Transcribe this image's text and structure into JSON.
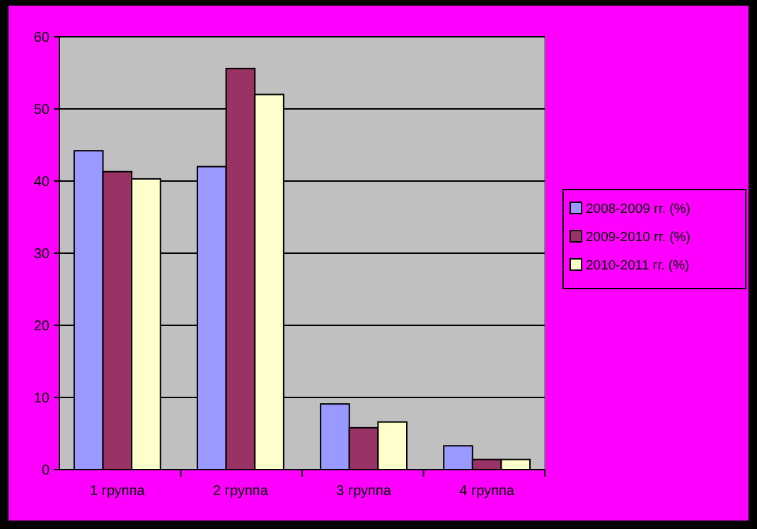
{
  "chart_data": {
    "type": "bar",
    "categories": [
      "1 группа",
      "2 группа",
      "3 группа",
      "4 группа"
    ],
    "series": [
      {
        "name": "2008-2009 гг. (%)",
        "color": "#9999ff",
        "values": [
          44.2,
          42.0,
          9.1,
          3.3
        ]
      },
      {
        "name": "2009-2010 гг. (%)",
        "color": "#993366",
        "values": [
          41.3,
          55.6,
          5.8,
          1.4
        ]
      },
      {
        "name": "2010-2011 гг. (%)",
        "color": "#ffffcc",
        "values": [
          40.3,
          52.0,
          6.6,
          1.4
        ]
      }
    ],
    "ylim": [
      0,
      60
    ],
    "yticks": [
      0,
      10,
      20,
      30,
      40,
      50,
      60
    ],
    "grid": "y",
    "legend": "right"
  }
}
